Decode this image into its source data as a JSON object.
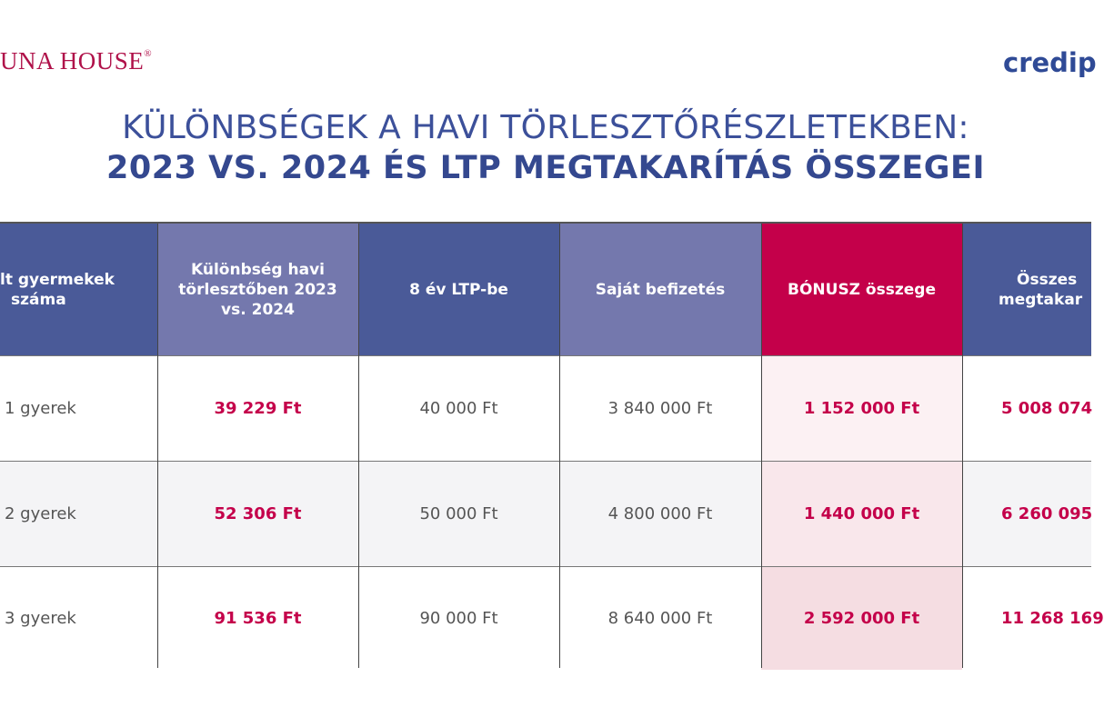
{
  "logos": {
    "left": "UNA HOUSE",
    "left_mark": "®",
    "right": "credip"
  },
  "title": {
    "line1": "KÜLÖNBSÉGEK A HAVI TÖRLESZTŐRÉSZLETEKBEN:",
    "line2": "2023 VS. 2024 ÉS LTP MEGTAKARÍTÁS ÖSSZEGEI"
  },
  "headers": [
    {
      "l1": "lt gyermekek",
      "l2": "száma"
    },
    {
      "l1": "Különbség havi",
      "l2": "törlesztőben 2023",
      "l3": "vs. 2024"
    },
    {
      "l1": "8 év LTP-be"
    },
    {
      "l1": "Saját befizetés"
    },
    {
      "l1": "BÓNUSZ összege"
    },
    {
      "l1": "Összes",
      "l2": "megtakar"
    }
  ],
  "rows": [
    [
      "1 gyerek",
      "39 229 Ft",
      "40 000 Ft",
      "3 840 000 Ft",
      "1 152 000 Ft",
      "5 008 074"
    ],
    [
      "2 gyerek",
      "52 306 Ft",
      "50 000 Ft",
      "4 800 000 Ft",
      "1 440 000 Ft",
      "6 260 095"
    ],
    [
      "3 gyerek",
      "91 536 Ft",
      "90 000 Ft",
      "8 640 000 Ft",
      "2 592 000 Ft",
      "11 268 169"
    ]
  ],
  "colors": {
    "navy": "#4a5a98",
    "lavender": "#7478ad",
    "accent": "#c4004a"
  }
}
